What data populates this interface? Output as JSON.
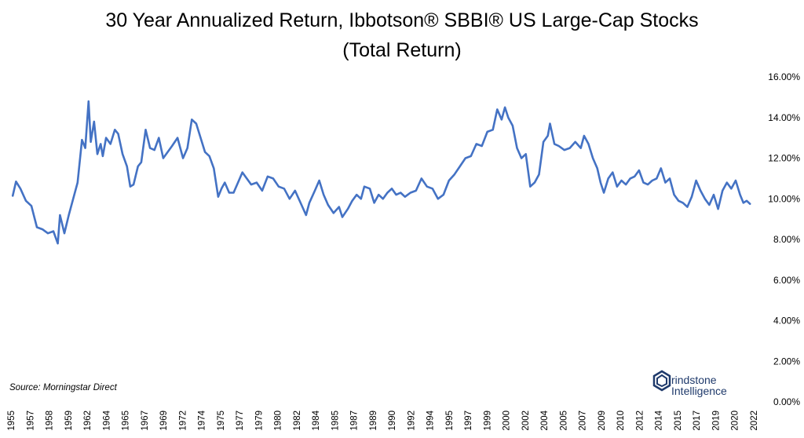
{
  "chart_data": {
    "type": "line",
    "title_line1": "30 Year Annualized Return, Ibbotson® SBBI® US Large-Cap Stocks",
    "title_line2": "(Total Return)",
    "xlabel": "",
    "ylabel": "",
    "ylim": [
      0,
      0.16
    ],
    "xlim": [
      1955.0,
      2022.6
    ],
    "grid": false,
    "y_tick_labels": [
      "0.00%",
      "2.00%",
      "4.00%",
      "6.00%",
      "8.00%",
      "10.00%",
      "12.00%",
      "14.00%",
      "16.00%"
    ],
    "x_tick_labels": [
      "1955",
      "1957",
      "1958",
      "1959",
      "1962",
      "1964",
      "1965",
      "1967",
      "1969",
      "1972",
      "1974",
      "1975",
      "1977",
      "1979",
      "1980",
      "1982",
      "1984",
      "1985",
      "1987",
      "1989",
      "1990",
      "1992",
      "1994",
      "1995",
      "1997",
      "1999",
      "2000",
      "2002",
      "2004",
      "2005",
      "2007",
      "2009",
      "2010",
      "2012",
      "2014",
      "2015",
      "2017",
      "2019",
      "2020",
      "2022"
    ],
    "line_color": "#4472C4",
    "series": [
      {
        "x": [
          1955.3,
          1955.6,
          1956.0,
          1956.5,
          1957.0,
          1957.5,
          1958.0,
          1958.5,
          1959.0,
          1959.4,
          1959.6,
          1960.0,
          1960.4,
          1960.8,
          1961.2,
          1961.6,
          1961.9,
          1962.2,
          1962.4,
          1962.7,
          1963.0,
          1963.3,
          1963.5,
          1963.8,
          1964.2,
          1964.6,
          1964.9,
          1965.3,
          1965.7,
          1966.0,
          1966.3,
          1966.7,
          1967.0,
          1967.4,
          1967.8,
          1968.2,
          1968.6,
          1969.0,
          1969.4,
          1969.8,
          1970.3,
          1970.8,
          1971.2,
          1971.6,
          1972.0,
          1972.4,
          1972.8,
          1973.2,
          1973.6,
          1974.0,
          1974.3,
          1974.6,
          1975.0,
          1975.4,
          1975.8,
          1976.2,
          1976.6,
          1977.0,
          1977.5,
          1978.0,
          1978.5,
          1979.0,
          1979.5,
          1980.0,
          1980.5,
          1981.0,
          1981.5,
          1982.0,
          1982.3,
          1982.8,
          1983.2,
          1983.6,
          1984.0,
          1984.5,
          1985.0,
          1985.3,
          1985.8,
          1986.2,
          1986.6,
          1987.0,
          1987.3,
          1987.8,
          1988.2,
          1988.6,
          1989.0,
          1989.4,
          1989.8,
          1990.2,
          1990.6,
          1991.0,
          1991.5,
          1992.0,
          1992.5,
          1993.0,
          1993.5,
          1994.0,
          1994.5,
          1995.0,
          1995.5,
          1996.0,
          1996.5,
          1997.0,
          1997.5,
          1998.0,
          1998.5,
          1999.0,
          1999.4,
          1999.8,
          2000.1,
          2000.4,
          2000.8,
          2001.2,
          2001.6,
          2002.0,
          2002.4,
          2002.8,
          2003.2,
          2003.6,
          2004.0,
          2004.2,
          2004.6,
          2005.0,
          2005.5,
          2006.0,
          2006.5,
          2007.0,
          2007.3,
          2007.7,
          2008.1,
          2008.5,
          2008.8,
          2009.1,
          2009.5,
          2009.9,
          2010.3,
          2010.7,
          2011.1,
          2011.5,
          2011.9,
          2012.3,
          2012.7,
          2013.1,
          2013.5,
          2013.9,
          2014.3,
          2014.7,
          2015.1,
          2015.5,
          2015.9,
          2016.3,
          2016.7,
          2017.1,
          2017.5,
          2017.9,
          2018.3,
          2018.7,
          2019.1,
          2019.5,
          2019.9,
          2020.3,
          2020.7,
          2021.1,
          2021.5,
          2021.8,
          2022.1,
          2022.4
        ],
        "y": [
          0.1015,
          0.1085,
          0.105,
          0.099,
          0.0965,
          0.086,
          0.085,
          0.083,
          0.084,
          0.078,
          0.092,
          0.083,
          0.092,
          0.1,
          0.108,
          0.129,
          0.125,
          0.148,
          0.128,
          0.138,
          0.122,
          0.127,
          0.121,
          0.13,
          0.127,
          0.134,
          0.132,
          0.122,
          0.116,
          0.106,
          0.107,
          0.116,
          0.118,
          0.134,
          0.125,
          0.124,
          0.13,
          0.12,
          0.123,
          0.126,
          0.13,
          0.12,
          0.125,
          0.139,
          0.137,
          0.13,
          0.123,
          0.121,
          0.115,
          0.101,
          0.105,
          0.108,
          0.103,
          0.103,
          0.108,
          0.113,
          0.11,
          0.107,
          0.108,
          0.104,
          0.111,
          0.11,
          0.106,
          0.105,
          0.1,
          0.104,
          0.098,
          0.092,
          0.098,
          0.104,
          0.109,
          0.102,
          0.097,
          0.093,
          0.096,
          0.091,
          0.095,
          0.099,
          0.102,
          0.1,
          0.106,
          0.105,
          0.098,
          0.102,
          0.1,
          0.103,
          0.105,
          0.102,
          0.103,
          0.101,
          0.103,
          0.104,
          0.11,
          0.106,
          0.105,
          0.1,
          0.102,
          0.109,
          0.112,
          0.116,
          0.12,
          0.121,
          0.127,
          0.126,
          0.133,
          0.134,
          0.144,
          0.139,
          0.145,
          0.14,
          0.136,
          0.125,
          0.12,
          0.122,
          0.106,
          0.108,
          0.112,
          0.128,
          0.131,
          0.137,
          0.127,
          0.126,
          0.124,
          0.125,
          0.128,
          0.125,
          0.131,
          0.127,
          0.12,
          0.115,
          0.108,
          0.103,
          0.11,
          0.113,
          0.106,
          0.109,
          0.107,
          0.11,
          0.111,
          0.114,
          0.108,
          0.107,
          0.109,
          0.11,
          0.115,
          0.108,
          0.11,
          0.102,
          0.099,
          0.098,
          0.096,
          0.101,
          0.109,
          0.104,
          0.1,
          0.097,
          0.102,
          0.095,
          0.104,
          0.108,
          0.105,
          0.109,
          0.102,
          0.098,
          0.099,
          0.0975
        ]
      }
    ],
    "source_note": "Source: Morningstar Direct",
    "logo": {
      "icon": "grindstone-hexagon-icon",
      "line1": "rindstone",
      "line2": "Intelligence",
      "color": "#1f3a6b"
    }
  }
}
